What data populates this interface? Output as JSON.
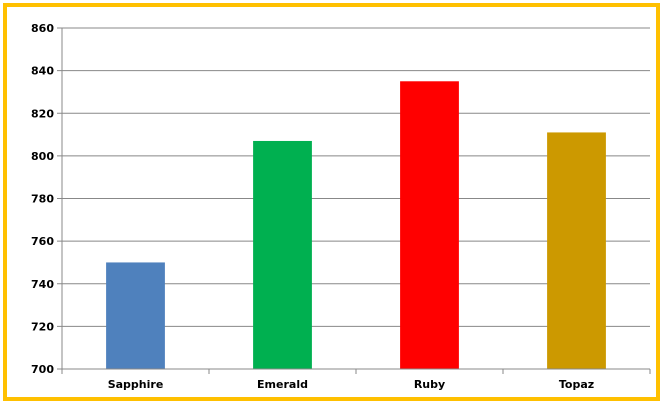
{
  "chart_data": {
    "type": "bar",
    "title": "",
    "xlabel": "",
    "ylabel": "",
    "categories": [
      "Sapphire",
      "Emerald",
      "Ruby",
      "Topaz"
    ],
    "values": [
      750,
      807,
      835,
      811
    ],
    "colors": [
      "#4f81bd",
      "#00b050",
      "#ff0000",
      "#cc9900"
    ],
    "ylim": [
      700,
      860
    ],
    "yticks": [
      700,
      720,
      740,
      760,
      780,
      800,
      820,
      840,
      860
    ],
    "grid": true,
    "legend": "none"
  },
  "style": {
    "border_color": "#ffc000",
    "grid_color": "#888888",
    "axis_color": "#888888"
  }
}
